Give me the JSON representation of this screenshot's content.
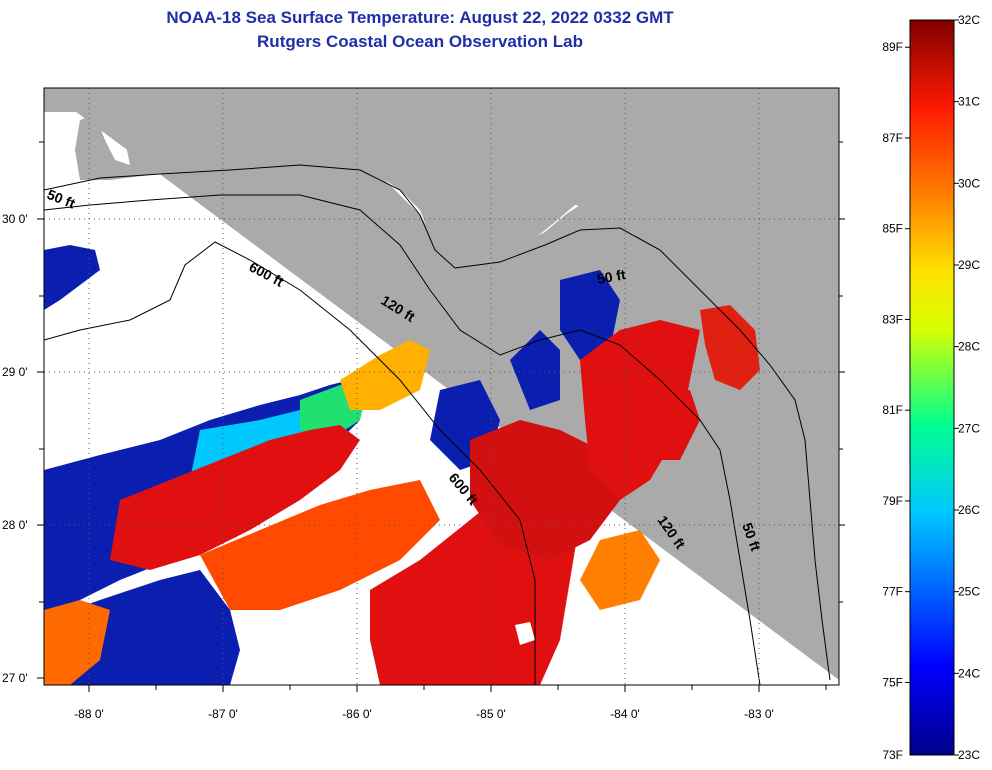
{
  "title": {
    "line1": "NOAA-18 Sea Surface Temperature:  August 22, 2022 0332 GMT",
    "line2": "Rutgers Coastal Ocean Observation Lab"
  },
  "axes": {
    "x_labels": [
      "-88 0'",
      "-87 0'",
      "-86 0'",
      "-85 0'",
      "-84 0'",
      "-83 0'"
    ],
    "y_labels": [
      "30 0'",
      "29 0'",
      "28 0'",
      "27 0'"
    ]
  },
  "contours": {
    "ft50_west": "50 ft",
    "ft600_north": "600 ft",
    "ft120_north": "120 ft",
    "ft50_bigbend": "50 ft",
    "ft600_south": "600 ft",
    "ft120_east": "120 ft",
    "ft50_east": "50 ft"
  },
  "colorbar": {
    "fahrenheit": [
      "89F",
      "87F",
      "85F",
      "83F",
      "81F",
      "79F",
      "77F",
      "75F",
      "73F"
    ],
    "celsius": [
      "32C",
      "31C",
      "30C",
      "29C",
      "28C",
      "27C",
      "26C",
      "25C",
      "24C",
      "23C"
    ],
    "min_c": 23,
    "max_c": 32
  },
  "colors": {
    "title": "#1f2fa8",
    "land": "#aaaaaa",
    "warm": "#e01010",
    "cool": "#0a1fb0"
  }
}
